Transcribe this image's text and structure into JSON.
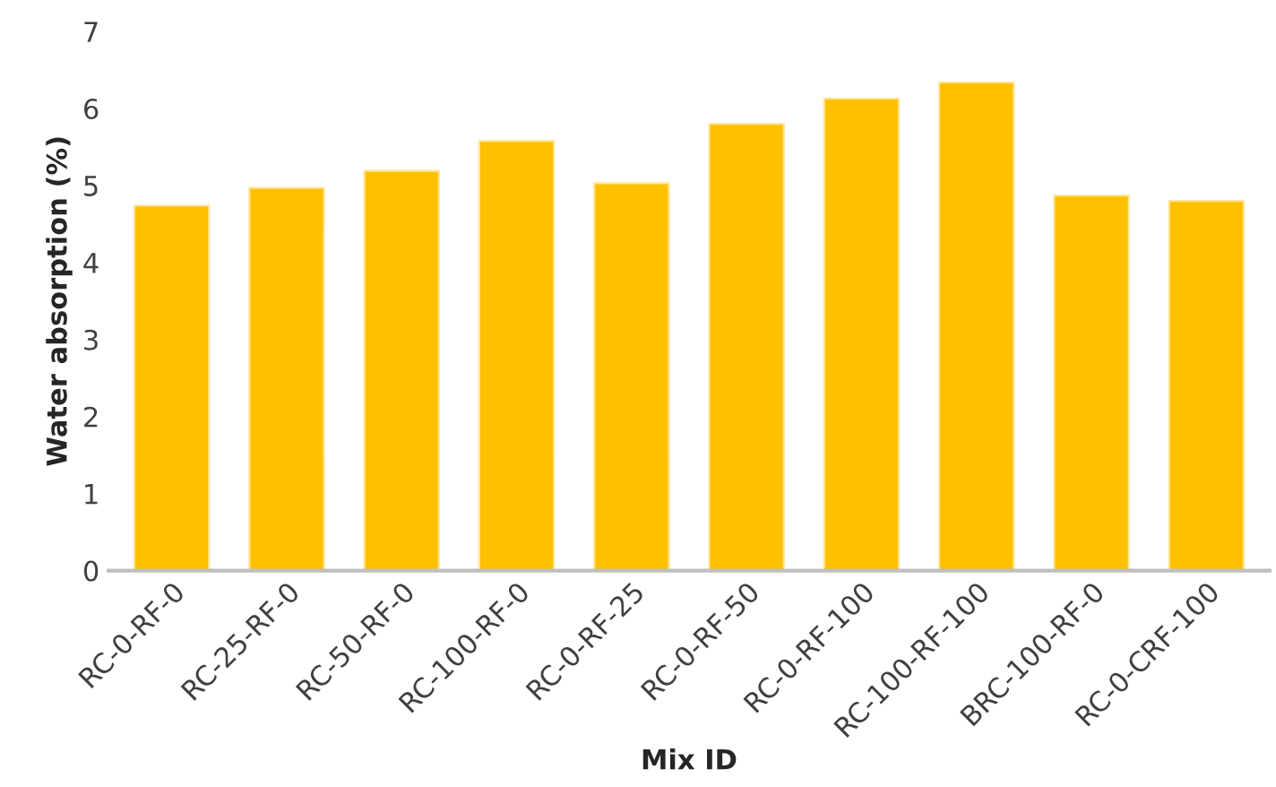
{
  "chart_data": {
    "type": "bar",
    "xlabel": "Mix ID",
    "ylabel": "Water absorption (%)",
    "categories": [
      "RC-0-RF-0",
      "RC-25-RF-0",
      "RC-50-RF-0",
      "RC-100-RF-0",
      "RC-0-RF-25",
      "RC-0-RF-50",
      "RC-0-RF-100",
      "RC-100-RF-100",
      "BRC-100-RF-0",
      "RC-0-CRF-100"
    ],
    "values": [
      4.74,
      4.97,
      5.19,
      5.58,
      5.03,
      5.8,
      6.13,
      6.34,
      4.87,
      4.8
    ],
    "color": "#ffc000",
    "ylim": [
      0,
      7
    ],
    "yticks": [
      0,
      1,
      2,
      3,
      4,
      5,
      6,
      7
    ],
    "grid": false
  }
}
